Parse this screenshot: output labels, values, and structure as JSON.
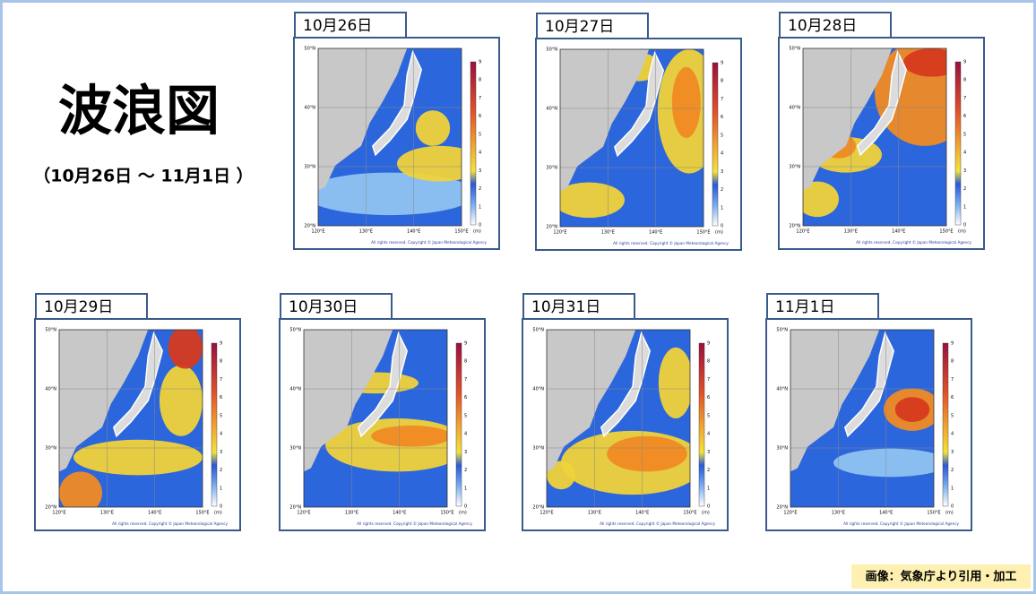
{
  "title": "波浪図",
  "subtitle": "（10月26日 ～ 11月1日 ）",
  "panels": [
    "10月26日",
    "10月27日",
    "10月28日",
    "10月29日",
    "10月30日",
    "10月31日",
    "11月1日"
  ],
  "map": {
    "lat_labels": [
      "50°N",
      "40°N",
      "30°N",
      "20°N"
    ],
    "lon_labels": [
      "120°E",
      "130°E",
      "140°E",
      "150°E"
    ],
    "scale_labels": [
      0,
      1,
      2,
      3,
      4,
      5,
      6,
      7,
      8,
      9
    ],
    "unit": "(m)",
    "copyright": "All rights reserved. Copyright © Japan Meteorological Agency"
  },
  "credit": "画像：気象庁より引用・加工"
}
